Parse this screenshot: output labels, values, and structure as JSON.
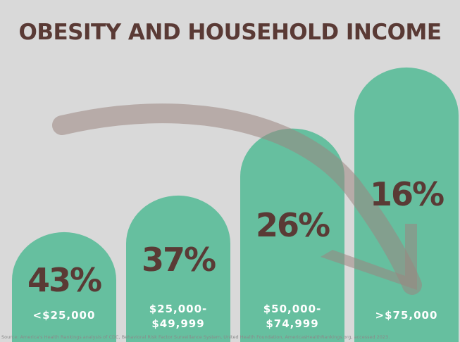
{
  "chart_data": {
    "type": "bar",
    "title": "OBESITY AND HOUSEHOLD INCOME",
    "categories": [
      "<$25,000",
      "$25,000-\n$49,999",
      "$50,000-\n$74,999",
      ">$75,000"
    ],
    "values": [
      43,
      37,
      26,
      16
    ],
    "value_labels": [
      "43%",
      "37%",
      "26%",
      "16%"
    ],
    "unit": "%",
    "xlabel": "",
    "ylabel": "",
    "grid": false,
    "legend": "none",
    "colors": {
      "bar": "#66bf9f",
      "title": "#5a3a35",
      "value_text": "#5a3a35",
      "category_text": "#ffffff",
      "arrow": "#9a8580",
      "background": "#d9d9d9"
    },
    "annotations": {
      "trend_arrow": "decreasing"
    }
  },
  "source": "Source: America's Health Rankings analysis of CDC, Behavioral Risk Factor Surveillance System, United Health Foundation, AmericasHealthRankings.org, accessed 2023."
}
